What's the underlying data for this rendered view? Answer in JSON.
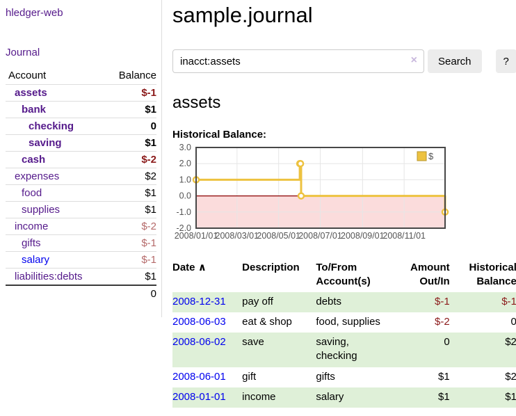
{
  "app": {
    "brand": "hledger-web"
  },
  "sidebar": {
    "journal_label": "Journal",
    "table": {
      "headers": {
        "account": "Account",
        "balance": "Balance"
      },
      "rows": [
        {
          "account": "assets",
          "balance": "$-1"
        },
        {
          "account": "bank",
          "balance": "$1"
        },
        {
          "account": "checking",
          "balance": "0"
        },
        {
          "account": "saving",
          "balance": "$1"
        },
        {
          "account": "cash",
          "balance": "$-2"
        },
        {
          "account": "expenses",
          "balance": "$2"
        },
        {
          "account": "food",
          "balance": "$1"
        },
        {
          "account": "supplies",
          "balance": "$1"
        },
        {
          "account": "income",
          "balance": "$-2"
        },
        {
          "account": "gifts",
          "balance": "$-1"
        },
        {
          "account": "salary",
          "balance": "$-1"
        },
        {
          "account": "liabilities:debts",
          "balance": "$1"
        }
      ],
      "total": "0"
    }
  },
  "header": {
    "title": "sample.journal"
  },
  "search": {
    "value": "inacct:assets",
    "clear_icon": "×",
    "button_label": "Search",
    "help_label": "?"
  },
  "account_page": {
    "title": "assets"
  },
  "chart_data": {
    "type": "line",
    "step": true,
    "title": "Historical Balance:",
    "series": [
      {
        "name": "$",
        "color": "#edc240",
        "points": [
          [
            "2008-01-01",
            1
          ],
          [
            "2008-06-01",
            2
          ],
          [
            "2008-06-02",
            2
          ],
          [
            "2008-06-03",
            0
          ],
          [
            "2008-12-31",
            -1
          ]
        ]
      }
    ],
    "x_ticks": [
      "2008/01/01",
      "2008/03/01",
      "2008/05/01",
      "2008/07/01",
      "2008/09/01",
      "2008/11/01"
    ],
    "y_ticks": [
      3,
      2,
      1,
      0,
      -1,
      -2
    ],
    "xlim": [
      "2008-01-01",
      "2008-12-31"
    ],
    "ylim": [
      -2,
      3
    ],
    "grid": true,
    "legend_position": "top-right",
    "negative_region_color": "#fbdcdc",
    "zero_line_color": "#8b0000"
  },
  "register_table": {
    "sort_icon": "∧",
    "headers": {
      "date": "Date",
      "description": "Description",
      "accounts": "To/From Account(s)",
      "amount": "Amount Out/In",
      "balance": "Historical Balance"
    },
    "rows": [
      {
        "date": "2008-12-31",
        "description": "pay off",
        "accounts": "debts",
        "amount": "$-1",
        "balance": "$-1"
      },
      {
        "date": "2008-06-03",
        "description": "eat & shop",
        "accounts": "food, supplies",
        "amount": "$-2",
        "balance": "0"
      },
      {
        "date": "2008-06-02",
        "description": "save",
        "accounts": "saving, checking",
        "amount": "0",
        "balance": "$2"
      },
      {
        "date": "2008-06-01",
        "description": "gift",
        "accounts": "gifts",
        "amount": "$1",
        "balance": "$2"
      },
      {
        "date": "2008-01-01",
        "description": "income",
        "accounts": "salary",
        "amount": "$1",
        "balance": "$1"
      }
    ]
  },
  "colors": {
    "link_purple": "#551a8b",
    "link_blue": "#0000ee",
    "negative_strong": "#8b1a1a",
    "negative_soft": "#b56a6a",
    "row_stripe_green": "#dff0d8",
    "chart_gold": "#edc240"
  }
}
